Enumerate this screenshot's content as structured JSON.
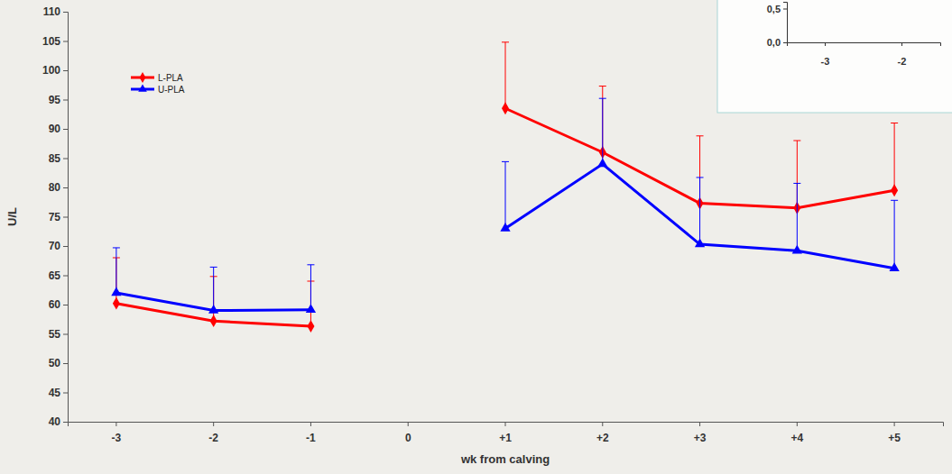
{
  "chart_data": [
    {
      "type": "line",
      "x_label": "wk from calving",
      "y_label": "U/L",
      "categories": [
        "-3",
        "-2",
        "-1",
        "0",
        "+1",
        "+2",
        "+3",
        "+4",
        "+5"
      ],
      "ylim": [
        40,
        110
      ],
      "yticks": [
        40,
        45,
        50,
        55,
        60,
        65,
        70,
        75,
        80,
        85,
        90,
        95,
        100,
        105,
        110
      ],
      "grid": false,
      "legend": "upper left",
      "series": [
        {
          "name": "L-PLA",
          "color": "#ff0000",
          "marker": "diamond",
          "line_style": "solid",
          "values": [
            60.2,
            57.2,
            56.3,
            null,
            93.5,
            86.0,
            77.3,
            76.5,
            79.5
          ],
          "errors": [
            7.8,
            7.6,
            7.7,
            null,
            11.3,
            11.3,
            11.5,
            11.5,
            11.5
          ]
        },
        {
          "name": "U-PLA",
          "color": "#0000ff",
          "marker": "triangle",
          "line_style": "solid",
          "values": [
            62.0,
            59.0,
            59.1,
            null,
            73.0,
            84.0,
            70.3,
            69.2,
            66.2
          ],
          "errors": [
            7.7,
            7.4,
            7.7,
            null,
            11.4,
            11.2,
            11.4,
            11.5,
            11.6
          ]
        }
      ]
    },
    {
      "type": "line",
      "categories": [
        "-3",
        "-2"
      ],
      "ylim": [
        0,
        0.6
      ],
      "yticks": [
        {
          "value": 0,
          "label": "0,0"
        },
        {
          "value": 0.5,
          "label": "0,5"
        }
      ]
    }
  ]
}
